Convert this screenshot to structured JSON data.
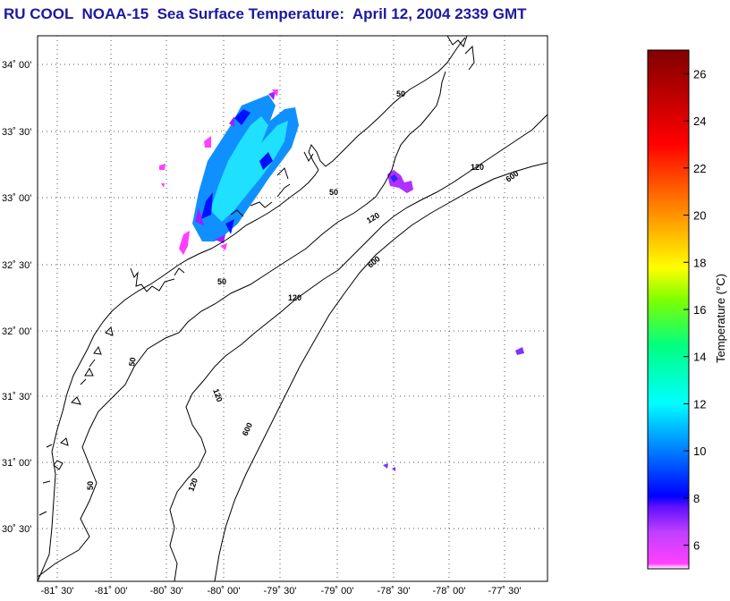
{
  "title": "RU COOL  NOAA-15  Sea Surface Temperature:  April 12, 2004 2339 GMT",
  "map": {
    "lat_ticks": [
      {
        "label": "34˚ 00'"
      },
      {
        "label": "33˚ 30'"
      },
      {
        "label": "33˚ 00'"
      },
      {
        "label": "32˚ 30'"
      },
      {
        "label": "32˚ 00'"
      },
      {
        "label": "31˚ 30'"
      },
      {
        "label": "31˚ 00'"
      },
      {
        "label": "30˚ 30'"
      }
    ],
    "lon_ticks": [
      {
        "label": "-81˚ 30'"
      },
      {
        "label": "-81˚ 00'"
      },
      {
        "label": "-80˚ 30'"
      },
      {
        "label": "-80˚ 00'"
      },
      {
        "label": "-79˚ 30'"
      },
      {
        "label": "-79˚ 00'"
      },
      {
        "label": "-78˚ 30'"
      },
      {
        "label": "-78˚ 00'"
      },
      {
        "label": "-77˚ 30'"
      }
    ],
    "contour_labels": [
      "50",
      "50",
      "50",
      "50",
      "50",
      "120",
      "120",
      "120",
      "120",
      "120",
      "600",
      "600",
      "600"
    ]
  },
  "colorbar": {
    "title": "Temperature (°C)",
    "range": [
      5,
      27
    ],
    "ticks": [
      "6",
      "8",
      "10",
      "12",
      "14",
      "16",
      "18",
      "20",
      "22",
      "24",
      "26"
    ],
    "colors": [
      "#ff3cff",
      "#c040ff",
      "#1a1aff",
      "#0090ff",
      "#00ffff",
      "#00ff60",
      "#a0ff00",
      "#ffff00",
      "#ff9000",
      "#ff0000",
      "#900000"
    ]
  }
}
